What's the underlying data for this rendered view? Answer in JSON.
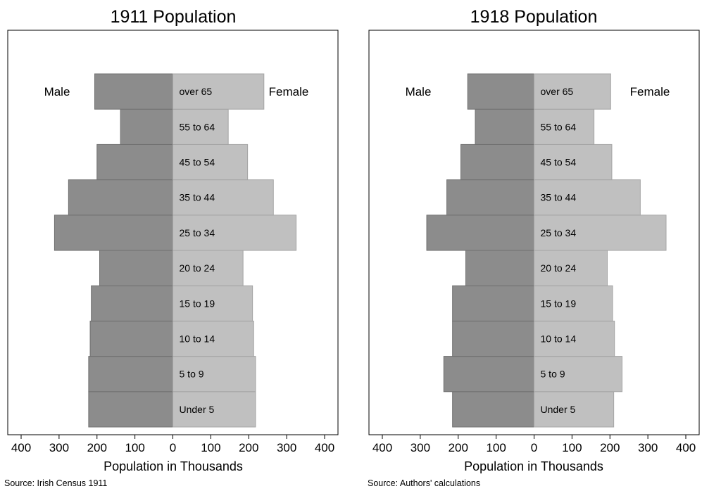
{
  "chart_data": [
    {
      "type": "bar",
      "orientation": "horizontal",
      "subtype": "population-pyramid",
      "title": "1911 Population",
      "xlabel": "Population in Thousands",
      "source": "Source: Irish Census 1911",
      "xlim": [
        -400,
        400
      ],
      "xticks": [
        -400,
        -300,
        -200,
        -100,
        0,
        100,
        200,
        300,
        400
      ],
      "xtick_labels": [
        "400",
        "300",
        "200",
        "100",
        "0",
        "100",
        "200",
        "300",
        "400"
      ],
      "grid": false,
      "categories": [
        "Under 5",
        "5 to 9",
        "10 to 14",
        "15 to 19",
        "20 to 24",
        "25 to 34",
        "35 to 44",
        "45 to 54",
        "55 to 64",
        "over 65"
      ],
      "series": [
        {
          "name": "Male",
          "color": "#8c8c8c",
          "values": [
            222,
            222,
            218,
            215,
            193,
            312,
            275,
            200,
            138,
            206
          ]
        },
        {
          "name": "Female",
          "color": "#c0c0c0",
          "values": [
            218,
            218,
            213,
            210,
            185,
            325,
            265,
            197,
            146,
            240
          ]
        }
      ]
    },
    {
      "type": "bar",
      "orientation": "horizontal",
      "subtype": "population-pyramid",
      "title": "1918 Population",
      "xlabel": "Population in Thousands",
      "source": "Source: Authors' calculations",
      "xlim": [
        -400,
        400
      ],
      "xticks": [
        -400,
        -300,
        -200,
        -100,
        0,
        100,
        200,
        300,
        400
      ],
      "xtick_labels": [
        "400",
        "300",
        "200",
        "100",
        "0",
        "100",
        "200",
        "300",
        "400"
      ],
      "grid": false,
      "categories": [
        "Under 5",
        "5 to 9",
        "10 to 14",
        "15 to 19",
        "20 to 24",
        "25 to 34",
        "35 to 44",
        "45 to 54",
        "55 to 64",
        "over 65"
      ],
      "series": [
        {
          "name": "Male",
          "color": "#8c8c8c",
          "values": [
            215,
            238,
            215,
            215,
            180,
            283,
            230,
            193,
            155,
            175
          ]
        },
        {
          "name": "Female",
          "color": "#c0c0c0",
          "values": [
            210,
            232,
            212,
            207,
            193,
            348,
            280,
            205,
            158,
            202
          ]
        }
      ]
    }
  ]
}
